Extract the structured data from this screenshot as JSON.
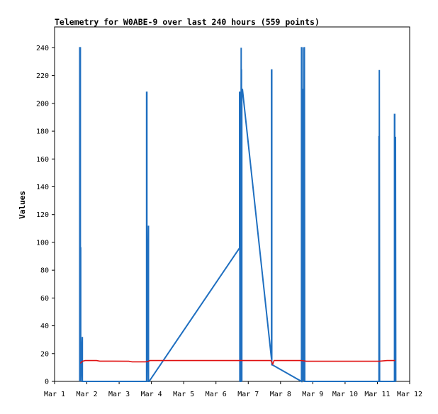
{
  "chart_data": {
    "type": "line",
    "title": "Telemetry for W0ABE-9 over last 240 hours (559 points)",
    "xlabel": "",
    "ylabel": "Values",
    "xlim": [
      1.0,
      12.0
    ],
    "ylim": [
      0,
      255
    ],
    "x_ticks": [
      1,
      2,
      3,
      4,
      5,
      6,
      7,
      8,
      9,
      10,
      11,
      12
    ],
    "x_tick_labels": [
      "Mar 1",
      "Mar 2",
      "Mar 3",
      "Mar 4",
      "Mar 5",
      "Mar 6",
      "Mar 7",
      "Mar 8",
      "Mar 9",
      "Mar 10",
      "Mar 11",
      "Mar 12"
    ],
    "y_ticks": [
      0,
      20,
      40,
      60,
      80,
      100,
      120,
      140,
      160,
      180,
      200,
      220,
      240
    ],
    "grid": false,
    "legend": "none",
    "series": [
      {
        "color": "#1f6fc0",
        "x": [
          1.78,
          1.78,
          1.8,
          1.8,
          1.81,
          1.81,
          1.86,
          1.86,
          1.87,
          3.85,
          3.85,
          3.86,
          3.86,
          3.91,
          3.91,
          3.92,
          3.93,
          6.73,
          6.73,
          6.74,
          6.74,
          6.75,
          6.75,
          6.77,
          6.78,
          6.78,
          6.79,
          6.8,
          6.8,
          6.82,
          7.72,
          7.72,
          7.73,
          7.73,
          7.74,
          8.65,
          8.65,
          8.66,
          8.66,
          8.67,
          8.68,
          8.68,
          8.69,
          8.7,
          8.71,
          8.72,
          8.72,
          8.73,
          8.74,
          8.75,
          8.75,
          8.76,
          11.05,
          11.05,
          11.06,
          11.06,
          11.07,
          11.53,
          11.53,
          11.54,
          11.54,
          11.55,
          11.56,
          11.56,
          11.57
        ],
        "y": [
          0,
          240,
          240,
          96,
          96,
          0,
          32,
          0,
          0,
          0,
          208,
          208,
          0,
          112,
          0,
          0,
          0,
          96,
          208,
          208,
          0,
          152,
          0,
          0,
          240,
          224,
          224,
          0,
          210,
          210,
          16,
          224,
          224,
          12,
          12,
          0,
          240,
          240,
          120,
          210,
          210,
          150,
          0,
          90,
          0,
          240,
          30,
          240,
          240,
          0,
          0,
          0,
          0,
          176,
          176,
          224,
          0,
          0,
          192,
          192,
          0,
          0,
          176,
          176,
          0
        ]
      },
      {
        "color": "#e01010",
        "x": [
          1.8,
          1.86,
          1.95,
          2.1,
          2.3,
          2.4,
          2.8,
          3.3,
          3.4,
          3.8,
          3.88,
          3.95,
          4.5,
          5.5,
          6.5,
          6.8,
          7.2,
          7.7,
          7.76,
          7.8,
          8.2,
          8.65,
          8.8,
          9.2,
          9.6,
          10.0,
          10.5,
          11.05,
          11.3,
          11.55
        ],
        "y": [
          13,
          14.5,
          15,
          15,
          15,
          14.6,
          14.6,
          14.5,
          14.1,
          14.1,
          14.2,
          15,
          15,
          15,
          15,
          15,
          15,
          15,
          12.5,
          15,
          15,
          15,
          14.5,
          14.5,
          14.5,
          14.5,
          14.5,
          14.5,
          15,
          15
        ]
      }
    ]
  }
}
